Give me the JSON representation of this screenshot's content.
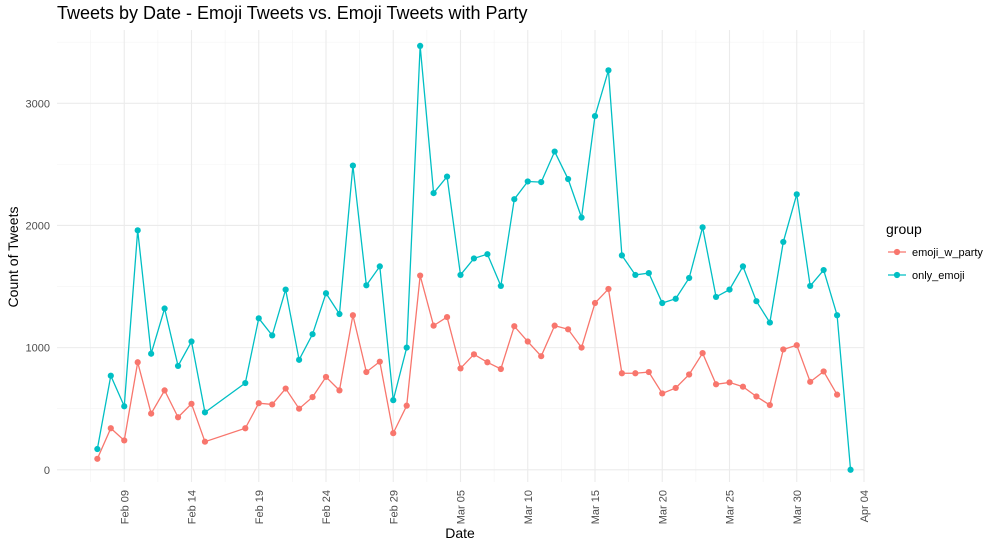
{
  "chart_data": {
    "type": "line",
    "title": "Tweets by Date - Emoji Tweets vs. Emoji Tweets with Party",
    "xlabel": "Date",
    "ylabel": "Count of Tweets",
    "xlim": [
      "2016-02-04",
      "2016-04-04"
    ],
    "ylim": [
      -100,
      3600
    ],
    "x_ticks": [
      {
        "date": "2016-02-09",
        "label": "Feb 09"
      },
      {
        "date": "2016-02-14",
        "label": "Feb 14"
      },
      {
        "date": "2016-02-19",
        "label": "Feb 19"
      },
      {
        "date": "2016-02-24",
        "label": "Feb 24"
      },
      {
        "date": "2016-02-29",
        "label": "Feb 29"
      },
      {
        "date": "2016-03-05",
        "label": "Mar 05"
      },
      {
        "date": "2016-03-10",
        "label": "Mar 10"
      },
      {
        "date": "2016-03-15",
        "label": "Mar 15"
      },
      {
        "date": "2016-03-20",
        "label": "Mar 20"
      },
      {
        "date": "2016-03-25",
        "label": "Mar 25"
      },
      {
        "date": "2016-03-30",
        "label": "Mar 30"
      },
      {
        "date": "2016-04-04",
        "label": "Apr 04"
      }
    ],
    "y_ticks": [
      0,
      1000,
      2000,
      3000
    ],
    "grid": true,
    "legend": {
      "title": "group",
      "placement": "right"
    },
    "series": [
      {
        "name": "emoji_w_party",
        "color": "#F8766D",
        "points": [
          [
            "2016-02-07",
            90
          ],
          [
            "2016-02-08",
            340
          ],
          [
            "2016-02-09",
            240
          ],
          [
            "2016-02-10",
            880
          ],
          [
            "2016-02-11",
            460
          ],
          [
            "2016-02-12",
            650
          ],
          [
            "2016-02-13",
            430
          ],
          [
            "2016-02-14",
            540
          ],
          [
            "2016-02-15",
            230
          ],
          [
            "2016-02-18",
            340
          ],
          [
            "2016-02-19",
            545
          ],
          [
            "2016-02-20",
            535
          ],
          [
            "2016-02-21",
            665
          ],
          [
            "2016-02-22",
            500
          ],
          [
            "2016-02-23",
            595
          ],
          [
            "2016-02-24",
            760
          ],
          [
            "2016-02-25",
            650
          ],
          [
            "2016-02-26",
            1265
          ],
          [
            "2016-02-27",
            800
          ],
          [
            "2016-02-28",
            885
          ],
          [
            "2016-02-29",
            300
          ],
          [
            "2016-03-01",
            525
          ],
          [
            "2016-03-02",
            1590
          ],
          [
            "2016-03-03",
            1180
          ],
          [
            "2016-03-04",
            1250
          ],
          [
            "2016-03-05",
            830
          ],
          [
            "2016-03-06",
            945
          ],
          [
            "2016-03-07",
            880
          ],
          [
            "2016-03-08",
            825
          ],
          [
            "2016-03-09",
            1175
          ],
          [
            "2016-03-10",
            1050
          ],
          [
            "2016-03-11",
            930
          ],
          [
            "2016-03-12",
            1180
          ],
          [
            "2016-03-13",
            1150
          ],
          [
            "2016-03-14",
            1000
          ],
          [
            "2016-03-15",
            1365
          ],
          [
            "2016-03-16",
            1480
          ],
          [
            "2016-03-17",
            790
          ],
          [
            "2016-03-18",
            790
          ],
          [
            "2016-03-19",
            800
          ],
          [
            "2016-03-20",
            625
          ],
          [
            "2016-03-21",
            670
          ],
          [
            "2016-03-22",
            780
          ],
          [
            "2016-03-23",
            955
          ],
          [
            "2016-03-24",
            700
          ],
          [
            "2016-03-25",
            715
          ],
          [
            "2016-03-26",
            680
          ],
          [
            "2016-03-27",
            600
          ],
          [
            "2016-03-28",
            530
          ],
          [
            "2016-03-29",
            985
          ],
          [
            "2016-03-30",
            1020
          ],
          [
            "2016-03-31",
            720
          ],
          [
            "2016-04-01",
            805
          ],
          [
            "2016-04-02",
            615
          ]
        ]
      },
      {
        "name": "only_emoji",
        "color": "#00BFC4",
        "points": [
          [
            "2016-02-07",
            170
          ],
          [
            "2016-02-08",
            770
          ],
          [
            "2016-02-09",
            520
          ],
          [
            "2016-02-10",
            1960
          ],
          [
            "2016-02-11",
            950
          ],
          [
            "2016-02-12",
            1320
          ],
          [
            "2016-02-13",
            850
          ],
          [
            "2016-02-14",
            1050
          ],
          [
            "2016-02-15",
            470
          ],
          [
            "2016-02-18",
            710
          ],
          [
            "2016-02-19",
            1240
          ],
          [
            "2016-02-20",
            1100
          ],
          [
            "2016-02-21",
            1475
          ],
          [
            "2016-02-22",
            900
          ],
          [
            "2016-02-23",
            1110
          ],
          [
            "2016-02-24",
            1445
          ],
          [
            "2016-02-25",
            1275
          ],
          [
            "2016-02-26",
            2490
          ],
          [
            "2016-02-27",
            1510
          ],
          [
            "2016-02-28",
            1665
          ],
          [
            "2016-02-29",
            570
          ],
          [
            "2016-03-01",
            1000
          ],
          [
            "2016-03-02",
            3470
          ],
          [
            "2016-03-03",
            2265
          ],
          [
            "2016-03-04",
            2400
          ],
          [
            "2016-03-05",
            1595
          ],
          [
            "2016-03-06",
            1730
          ],
          [
            "2016-03-07",
            1765
          ],
          [
            "2016-03-08",
            1505
          ],
          [
            "2016-03-09",
            2215
          ],
          [
            "2016-03-10",
            2360
          ],
          [
            "2016-03-11",
            2355
          ],
          [
            "2016-03-12",
            2605
          ],
          [
            "2016-03-13",
            2380
          ],
          [
            "2016-03-14",
            2065
          ],
          [
            "2016-03-15",
            2895
          ],
          [
            "2016-03-16",
            3270
          ],
          [
            "2016-03-17",
            1755
          ],
          [
            "2016-03-18",
            1595
          ],
          [
            "2016-03-19",
            1610
          ],
          [
            "2016-03-20",
            1365
          ],
          [
            "2016-03-21",
            1400
          ],
          [
            "2016-03-22",
            1570
          ],
          [
            "2016-03-23",
            1985
          ],
          [
            "2016-03-24",
            1415
          ],
          [
            "2016-03-25",
            1475
          ],
          [
            "2016-03-26",
            1665
          ],
          [
            "2016-03-27",
            1380
          ],
          [
            "2016-03-28",
            1205
          ],
          [
            "2016-03-29",
            1865
          ],
          [
            "2016-03-30",
            2255
          ],
          [
            "2016-03-31",
            1505
          ],
          [
            "2016-04-01",
            1635
          ],
          [
            "2016-04-02",
            1265
          ],
          [
            "2016-04-03",
            0
          ]
        ]
      }
    ]
  }
}
